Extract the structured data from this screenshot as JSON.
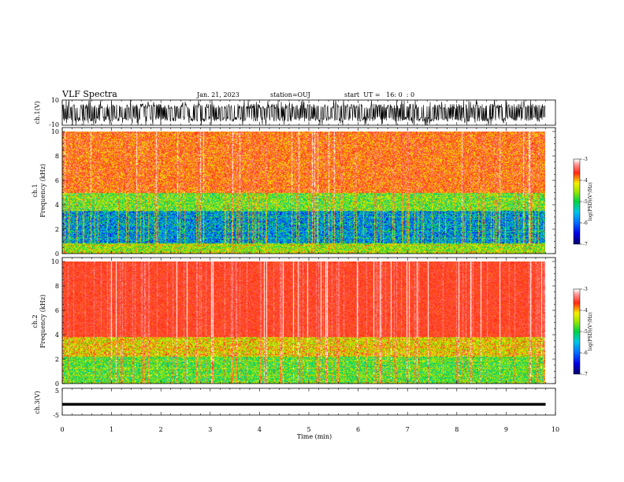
{
  "header": {
    "title": "VLF Spectra",
    "date": "Jan. 21, 2023",
    "station": "station=OUJ",
    "start": "start  UT =   16: 0  : 0"
  },
  "colors": {
    "spec_low": "#00007f",
    "spec_mid_low": "#0060ff",
    "spec_mid": "#00d040",
    "spec_mid_high": "#f0f000",
    "spec_high": "#ff1a1a",
    "spec_top": "#ffffff"
  },
  "chart_data": [
    {
      "type": "line",
      "panel": "ch1-waveform",
      "ylabel": "ch.1(V)",
      "ylim": [
        -10,
        10
      ],
      "y_ticks": [
        "10",
        "-10"
      ],
      "x_range": [
        0,
        10
      ],
      "signal": "noise burst waveform, amplitude approx. +/-10 V, data until ~9.8 min"
    },
    {
      "type": "heatmap",
      "panel": "ch1-spectrogram",
      "ylabel": "ch.1\nFrequency  (kHz)",
      "ylim": [
        0,
        10
      ],
      "y_ticks": [
        "0",
        "2",
        "4",
        "6",
        "8",
        "10"
      ],
      "x_range": [
        0,
        9.8
      ],
      "colorbar": {
        "label": "log(PSD)(V²/Hz)",
        "range": [
          -7,
          -3
        ],
        "ticks": [
          "-3",
          "-4",
          "-5",
          "-6",
          "-7"
        ]
      }
    },
    {
      "type": "heatmap",
      "panel": "ch2-spectrogram",
      "ylabel": "ch.2\nFrequency  (kHz)",
      "ylim": [
        0,
        10
      ],
      "y_ticks": [
        "0",
        "2",
        "4",
        "6",
        "8",
        "10"
      ],
      "x_range": [
        0,
        9.8
      ],
      "colorbar": {
        "label": "log(PSD)(V²/Hz)",
        "range": [
          -7,
          -3
        ],
        "ticks": [
          "-3",
          "-4",
          "-5",
          "-6",
          "-7"
        ]
      }
    },
    {
      "type": "line",
      "panel": "ch3-waveform",
      "ylabel": "ch.3(V)",
      "ylim": [
        -5,
        5
      ],
      "y_ticks": [
        "5",
        "-5"
      ],
      "x_range": [
        0,
        10
      ],
      "value": -1
    }
  ],
  "xaxis": {
    "label": "Time  (min)",
    "ticks": [
      "0",
      "1",
      "2",
      "3",
      "4",
      "5",
      "6",
      "7",
      "8",
      "9",
      "10"
    ],
    "range": [
      0,
      10
    ]
  }
}
